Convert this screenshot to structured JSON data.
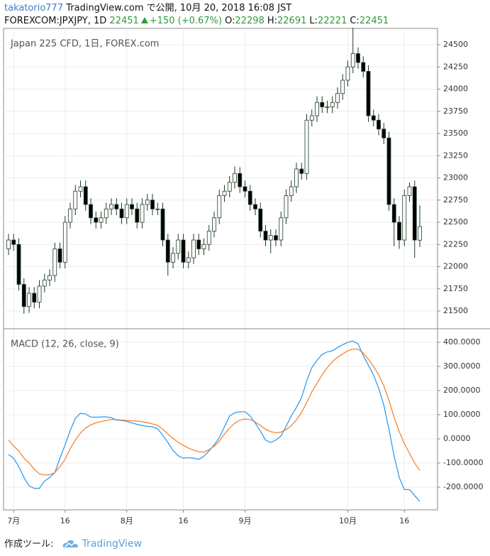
{
  "header": {
    "author": "takatorio777",
    "published": "TradingView.com で公開, 10月 20, 2018 16:08 JST",
    "symbol": "FOREXCOM:JPXJPY, 1D",
    "last": "22451",
    "change": "+150 (+0.67%)",
    "ohlc": [
      {
        "label": "O:",
        "value": "22298"
      },
      {
        "label": "H:",
        "value": "22691"
      },
      {
        "label": "L:",
        "value": "22221"
      },
      {
        "label": "C:",
        "value": "22451"
      }
    ]
  },
  "chart_data": [
    {
      "type": "candlestick",
      "title": "Japan 225 CFD, 1日, FOREX.com",
      "open": [
        22200,
        22300,
        22250,
        21800,
        21550,
        21700,
        21600,
        21780,
        21850,
        21900,
        22200,
        22050,
        22500,
        22650,
        22850,
        22900,
        22700,
        22550,
        22500,
        22550,
        22650,
        22700,
        22650,
        22550,
        22700,
        22650,
        22500,
        22700,
        22750,
        22650,
        22650,
        22300,
        22050,
        22150,
        22300,
        22050,
        22100,
        22300,
        22200,
        22250,
        22400,
        22550,
        22800,
        22850,
        22950,
        23050,
        22900,
        22850,
        22700,
        22650,
        22400,
        22300,
        22350,
        22300,
        22550,
        22800,
        22900,
        23100,
        23050,
        23650,
        23700,
        23850,
        23800,
        23800,
        23850,
        23950,
        24100,
        24250,
        24400,
        24300,
        24200,
        23700,
        23650,
        23550,
        23450,
        22700,
        22500,
        22300,
        22800,
        22900,
        22298
      ],
      "high": [
        22370,
        22370,
        22320,
        21870,
        21770,
        21770,
        21850,
        21920,
        21970,
        22270,
        22270,
        22570,
        22720,
        22920,
        22970,
        22970,
        22770,
        22620,
        22620,
        22720,
        22770,
        22770,
        22720,
        22770,
        22770,
        22720,
        22770,
        22820,
        22820,
        22720,
        22720,
        22370,
        22220,
        22370,
        22370,
        22170,
        22370,
        22370,
        22320,
        22470,
        22620,
        22870,
        22920,
        23020,
        23130,
        23120,
        22970,
        22920,
        22770,
        22720,
        22470,
        22420,
        22420,
        22620,
        22870,
        22970,
        23170,
        23170,
        23720,
        23770,
        23920,
        23920,
        23870,
        23920,
        24020,
        24170,
        24320,
        24690,
        24470,
        24370,
        24270,
        23770,
        23720,
        23620,
        23520,
        22770,
        22570,
        22870,
        22950,
        22970,
        22691
      ],
      "low": [
        22130,
        22180,
        21730,
        21470,
        21480,
        21530,
        21530,
        21710,
        21780,
        21830,
        21980,
        21980,
        22430,
        22580,
        22780,
        22630,
        22480,
        22430,
        22430,
        22480,
        22580,
        22580,
        22480,
        22480,
        22580,
        22430,
        22430,
        22630,
        22580,
        22580,
        22230,
        21900,
        21980,
        22080,
        21980,
        21980,
        22030,
        22130,
        22130,
        22180,
        22330,
        22480,
        22730,
        22780,
        22880,
        22830,
        22780,
        22630,
        22580,
        22330,
        22230,
        22150,
        22230,
        22230,
        22480,
        22730,
        22830,
        22980,
        22980,
        23580,
        23630,
        23730,
        23730,
        23730,
        23780,
        23880,
        24030,
        24180,
        24230,
        24130,
        23630,
        23580,
        23480,
        23380,
        22630,
        22230,
        22200,
        22230,
        22730,
        22100,
        22221
      ],
      "close": [
        22300,
        22250,
        21800,
        21550,
        21700,
        21600,
        21780,
        21850,
        21900,
        22200,
        22050,
        22500,
        22650,
        22850,
        22900,
        22700,
        22550,
        22500,
        22550,
        22650,
        22700,
        22650,
        22550,
        22700,
        22650,
        22500,
        22700,
        22750,
        22650,
        22650,
        22300,
        22050,
        22150,
        22300,
        22050,
        22100,
        22300,
        22200,
        22250,
        22400,
        22550,
        22800,
        22850,
        22950,
        23050,
        22900,
        22850,
        22700,
        22650,
        22400,
        22300,
        22350,
        22300,
        22550,
        22800,
        22900,
        23100,
        23050,
        23650,
        23700,
        23850,
        23800,
        23800,
        23850,
        23950,
        24100,
        24250,
        24400,
        24300,
        24200,
        23700,
        23650,
        23550,
        23450,
        22700,
        22500,
        22300,
        22800,
        22900,
        22300,
        22451
      ],
      "up_color": "#ffffff",
      "down_color": "#000000",
      "edge_color": "#1f3b26",
      "xlim": [
        -0.97,
        83.45
      ],
      "ylim": [
        21300,
        24684
      ],
      "yticks": [
        21500,
        21750,
        22000,
        22250,
        22500,
        22750,
        23000,
        23250,
        23500,
        23750,
        24000,
        24250,
        24500
      ],
      "grid": true
    },
    {
      "type": "line",
      "title": "MACD (12, 26, close, 9)",
      "series": [
        {
          "color": "#2196f3",
          "values": [
            -65,
            -80,
            -115,
            -160,
            -195,
            -205,
            -205,
            -175,
            -160,
            -140,
            -80,
            -25,
            35,
            85,
            106,
            103,
            90,
            90,
            91,
            91,
            88,
            78,
            76,
            73,
            66,
            60,
            55,
            52,
            50,
            42,
            15,
            -15,
            -48,
            -70,
            -80,
            -78,
            -80,
            -85,
            -72,
            -50,
            -25,
            5,
            50,
            95,
            108,
            112,
            112,
            95,
            65,
            32,
            -5,
            -15,
            -5,
            12,
            52,
            95,
            130,
            171,
            240,
            295,
            325,
            350,
            360,
            365,
            378,
            390,
            400,
            405,
            394,
            345,
            305,
            265,
            210,
            140,
            40,
            -70,
            -160,
            -210,
            -210,
            -235,
            -259
          ]
        },
        {
          "color": "#f57c24",
          "values": [
            -5,
            -30,
            -50,
            -80,
            -100,
            -125,
            -145,
            -150,
            -148,
            -140,
            -115,
            -85,
            -40,
            -5,
            25,
            45,
            58,
            66,
            72,
            76,
            80,
            80,
            78,
            76,
            75,
            74,
            71,
            67,
            62,
            55,
            40,
            20,
            2,
            -15,
            -27,
            -38,
            -47,
            -53,
            -55,
            -45,
            -30,
            -10,
            20,
            45,
            65,
            78,
            82,
            80,
            70,
            55,
            40,
            30,
            25,
            28,
            38,
            55,
            78,
            110,
            150,
            195,
            230,
            265,
            295,
            320,
            338,
            352,
            365,
            372,
            371,
            355,
            330,
            300,
            265,
            220,
            160,
            90,
            30,
            -20,
            -60,
            -100,
            -130
          ]
        }
      ],
      "xlim": [
        -0.97,
        83.45
      ],
      "ylim": [
        -294,
        456
      ],
      "yticks": [
        {
          "value": 400,
          "label": "400.0000"
        },
        {
          "value": 300,
          "label": "300.0000"
        },
        {
          "value": 200,
          "label": "200.0000"
        },
        {
          "value": 100,
          "label": "100.0000"
        },
        {
          "value": 0,
          "label": "0.0000"
        },
        {
          "value": -100,
          "label": "-100.0000"
        },
        {
          "value": -200,
          "label": "-200.0000"
        }
      ],
      "xticks": [
        {
          "value": 1,
          "label": "7月"
        },
        {
          "value": 11,
          "label": "16"
        },
        {
          "value": 23,
          "label": "8月"
        },
        {
          "value": 34,
          "label": "16"
        },
        {
          "value": 46,
          "label": "9月"
        },
        {
          "value": 66,
          "label": "10月"
        },
        {
          "value": 77,
          "label": "16"
        }
      ],
      "grid": true
    }
  ],
  "footer": {
    "made_with": "作成ツール:",
    "brand": "TradingView"
  }
}
